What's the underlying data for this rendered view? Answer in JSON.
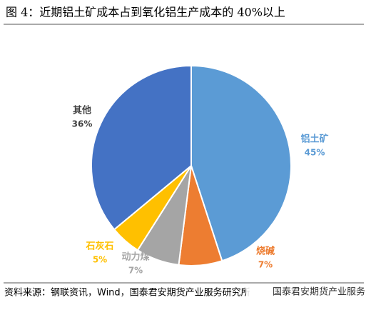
{
  "chart_data": {
    "type": "pie",
    "title": "图 4：近期铝土矿成本占到氧化铝生产成本的 40%以上",
    "categories": [
      "铝土矿",
      "烧碱",
      "动力煤",
      "石灰石",
      "其他"
    ],
    "values": [
      45,
      7,
      7,
      5,
      36
    ],
    "value_labels": [
      "45%",
      "7%",
      "7%",
      "5%",
      "36%"
    ],
    "colors": [
      "#5b9bd5",
      "#ed7d31",
      "#a5a5a5",
      "#ffc000",
      "#4472c4"
    ],
    "label_colors": [
      "#5b9bd5",
      "#ed7d31",
      "#a5a5a5",
      "#ffc000",
      "#404040"
    ],
    "source": "资料来源：钢联资讯，Wind，国泰君安期货产业服务研究所",
    "watermark": "国泰君安期货产业服务"
  }
}
